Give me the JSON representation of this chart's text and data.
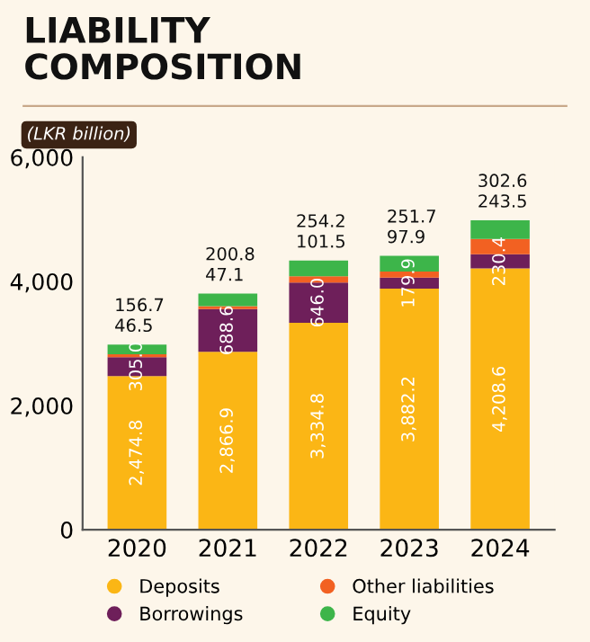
{
  "chart_data": {
    "type": "bar",
    "title": "LIABILITY\nCOMPOSITION",
    "subtitle": "(LKR billion)",
    "stacked": true,
    "categories": [
      "2020",
      "2021",
      "2022",
      "2023",
      "2024"
    ],
    "series": [
      {
        "name": "Deposits",
        "color": "#fbb615",
        "values": [
          2474.8,
          2866.9,
          3334.8,
          3882.2,
          4208.6
        ],
        "value_labels": [
          "2,474.8",
          "2,866.9",
          "3,334.8",
          "3,882.2",
          "4,208.6"
        ]
      },
      {
        "name": "Borrowings",
        "color": "#6e1f5a",
        "values": [
          305.0,
          688.6,
          646.0,
          179.9,
          230.4
        ],
        "value_labels": [
          "305.0",
          "688.6",
          "646.0",
          "179.9",
          "230.4"
        ]
      },
      {
        "name": "Other liabilities",
        "color": "#f26122",
        "values": [
          46.5,
          47.1,
          101.5,
          97.9,
          243.5
        ],
        "value_labels": [
          "46.5",
          "47.1",
          "101.5",
          "97.9",
          "243.5"
        ]
      },
      {
        "name": "Equity",
        "color": "#3db54a",
        "values": [
          156.7,
          200.8,
          254.2,
          251.7,
          302.6
        ],
        "value_labels": [
          "156.7",
          "200.8",
          "254.2",
          "251.7",
          "302.6"
        ]
      }
    ],
    "ylim": [
      0,
      6000
    ],
    "yticks": [
      {
        "value": 0,
        "label": "0"
      },
      {
        "value": 2000,
        "label": "2,000"
      },
      {
        "value": 4000,
        "label": "4,000"
      },
      {
        "value": 6000,
        "label": "6,000"
      }
    ],
    "grid": false,
    "legend": "bottom"
  }
}
